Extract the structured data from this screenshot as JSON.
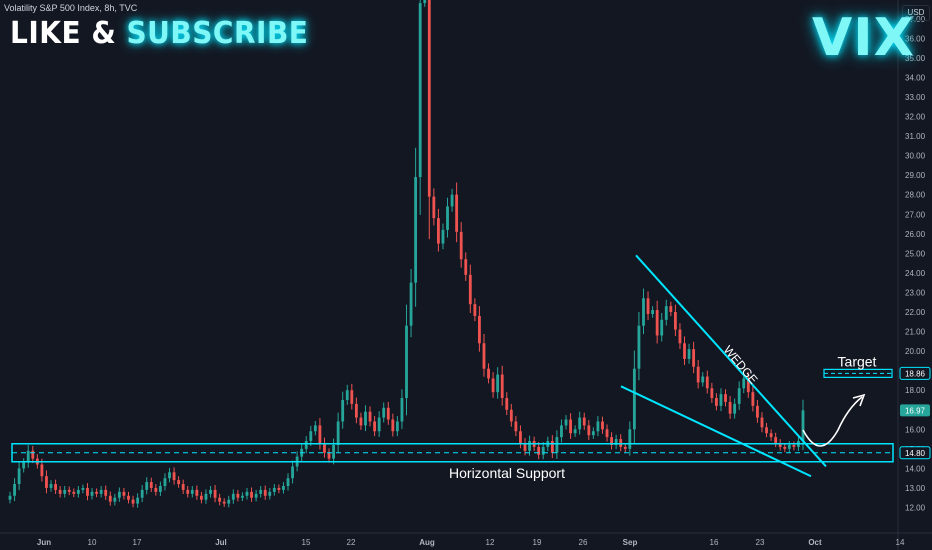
{
  "header": {
    "symbol_title": "Volatility S&P 500 Index, 8h, TVC",
    "currency": "USD"
  },
  "overlay": {
    "like": "LIKE",
    "amp": "&",
    "subscribe": "SUBSCRIBE",
    "ticker_big": "VIX"
  },
  "annotations": {
    "wedge": "WEDGE",
    "target": "Target",
    "support": "Horizontal Support"
  },
  "price_tags": {
    "target_price": "18.86",
    "current_price": "16.97",
    "support_price": "14.80"
  },
  "colors": {
    "background": "#131722",
    "up": "#26a69a",
    "down": "#ef5350",
    "annotation": "#00e5ff",
    "axis_text": "#b2b5be"
  },
  "chart_data": {
    "type": "candlestick",
    "title": "Volatility S&P 500 Index, 8h, TVC",
    "yaxis_ticks": [
      "12.00",
      "13.00",
      "14.00",
      "15.00",
      "16.00",
      "17.00",
      "18.00",
      "19.00",
      "20.00",
      "21.00",
      "22.00",
      "23.00",
      "24.00",
      "25.00",
      "26.00",
      "27.00",
      "28.00",
      "29.00",
      "30.00",
      "31.00",
      "32.00",
      "33.00",
      "34.00",
      "35.00",
      "36.00",
      "37.00"
    ],
    "xaxis_ticks": [
      "Jun",
      "10",
      "17",
      "Jul",
      "15",
      "22",
      "Aug",
      "12",
      "19",
      "26",
      "Sep",
      "16",
      "23",
      "Oct",
      "14"
    ],
    "ylim": [
      11.6,
      38.2
    ],
    "levels": {
      "support": 14.8,
      "target": 18.86,
      "last": 16.97
    },
    "wedge_upper": [
      {
        "i": 0.0,
        "v": 24.9
      },
      {
        "i": 1.0,
        "v": 14.1
      }
    ],
    "wedge_lower": [
      {
        "i": 0.0,
        "v": 18.2
      },
      {
        "i": 1.0,
        "v": 13.6
      }
    ],
    "closes": [
      12.6,
      13.2,
      14.0,
      14.3,
      14.9,
      14.5,
      14.2,
      13.6,
      13.0,
      13.2,
      12.9,
      12.7,
      12.9,
      12.8,
      12.7,
      12.9,
      13.0,
      12.6,
      12.8,
      12.7,
      12.9,
      12.6,
      12.3,
      12.5,
      12.8,
      12.6,
      12.4,
      12.2,
      12.5,
      12.9,
      13.3,
      13.0,
      12.8,
      13.1,
      13.5,
      13.8,
      13.4,
      13.2,
      12.9,
      12.7,
      12.9,
      12.6,
      12.4,
      12.7,
      12.9,
      12.5,
      12.3,
      12.2,
      12.4,
      12.7,
      12.5,
      12.6,
      12.8,
      12.5,
      12.7,
      12.9,
      12.6,
      12.8,
      13.0,
      12.9,
      13.1,
      13.5,
      14.1,
      14.6,
      15.0,
      15.4,
      15.9,
      16.2,
      15.3,
      14.8,
      14.5,
      15.2,
      16.4,
      17.5,
      18.0,
      17.3,
      16.6,
      16.2,
      16.9,
      16.4,
      15.9,
      16.6,
      17.1,
      16.5,
      15.9,
      16.4,
      17.6,
      21.3,
      23.5,
      28.9,
      37.8,
      38.0,
      27.9,
      26.8,
      25.5,
      26.2,
      27.4,
      28.0,
      26.1,
      24.7,
      23.9,
      22.4,
      21.8,
      20.4,
      19.1,
      18.6,
      17.9,
      18.8,
      17.6,
      17.0,
      16.4,
      15.9,
      15.3,
      14.9,
      15.4,
      15.1,
      14.7,
      15.1,
      15.4,
      14.8,
      15.6,
      16.2,
      16.5,
      15.8,
      16.0,
      16.6,
      16.2,
      15.7,
      15.9,
      16.4,
      16.0,
      15.6,
      15.2,
      15.5,
      15.1,
      15.0,
      16.0,
      19.1,
      21.3,
      22.7,
      21.9,
      22.1,
      20.8,
      21.6,
      22.3,
      22.0,
      21.1,
      20.4,
      19.6,
      20.1,
      19.2,
      18.4,
      18.7,
      18.1,
      17.6,
      17.2,
      17.8,
      17.4,
      16.8,
      17.3,
      18.1,
      18.6,
      17.9,
      17.2,
      16.6,
      16.1,
      15.8,
      15.6,
      15.3,
      15.1,
      15.0,
      15.2,
      15.1,
      15.4,
      16.97
    ]
  }
}
